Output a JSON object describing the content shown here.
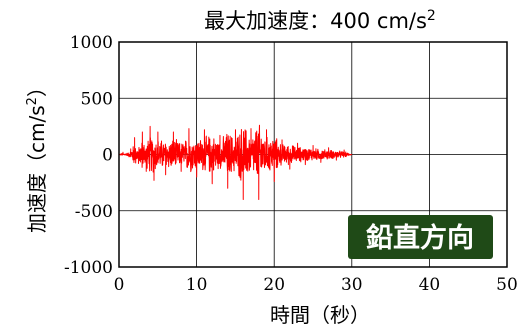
{
  "chart_data": {
    "type": "line",
    "title": "最大加速度：400 cm/s²",
    "title_main": "最大加速度：400 cm/s",
    "title_sup": "2",
    "xlabel": "時間（秒）",
    "ylabel_main": "加速度（cm/s",
    "ylabel_sup": "2",
    "ylabel_end": "）",
    "xlim": [
      0,
      50
    ],
    "ylim": [
      -1000,
      1000
    ],
    "xticks": [
      "0",
      "10",
      "20",
      "30",
      "40",
      "50"
    ],
    "yticks": [
      "1000",
      "500",
      "0",
      "-500",
      "-1000"
    ],
    "grid": true,
    "annotation": "鉛直方向",
    "colors": {
      "series": "#ff0000",
      "badge_bg": "#1f4a17",
      "badge_text": "#ffffff"
    },
    "series": [
      {
        "duration": 30,
        "peak_abs": 400,
        "key_points": [
          [
            0.0,
            0
          ],
          [
            0.5,
            20
          ],
          [
            1.0,
            10
          ],
          [
            1.5,
            50
          ],
          [
            2.0,
            150
          ],
          [
            2.5,
            -80
          ],
          [
            3.0,
            200
          ],
          [
            3.5,
            -150
          ],
          [
            4.0,
            250
          ],
          [
            4.5,
            -230
          ],
          [
            5.0,
            200
          ],
          [
            6.0,
            -180
          ],
          [
            7.0,
            200
          ],
          [
            8.0,
            -150
          ],
          [
            9.0,
            230
          ],
          [
            10.0,
            -200
          ],
          [
            11.0,
            220
          ],
          [
            12.0,
            -260
          ],
          [
            13.0,
            170
          ],
          [
            14.0,
            -300
          ],
          [
            15.0,
            220
          ],
          [
            16.0,
            -400
          ],
          [
            17.0,
            230
          ],
          [
            18.0,
            -400
          ],
          [
            19.0,
            220
          ],
          [
            20.0,
            -240
          ],
          [
            21.0,
            130
          ],
          [
            22.0,
            -130
          ],
          [
            23.0,
            100
          ],
          [
            24.0,
            -90
          ],
          [
            25.0,
            80
          ],
          [
            26.0,
            -70
          ],
          [
            27.0,
            60
          ],
          [
            28.0,
            -50
          ],
          [
            29.0,
            40
          ],
          [
            30.0,
            0
          ]
        ]
      }
    ]
  }
}
